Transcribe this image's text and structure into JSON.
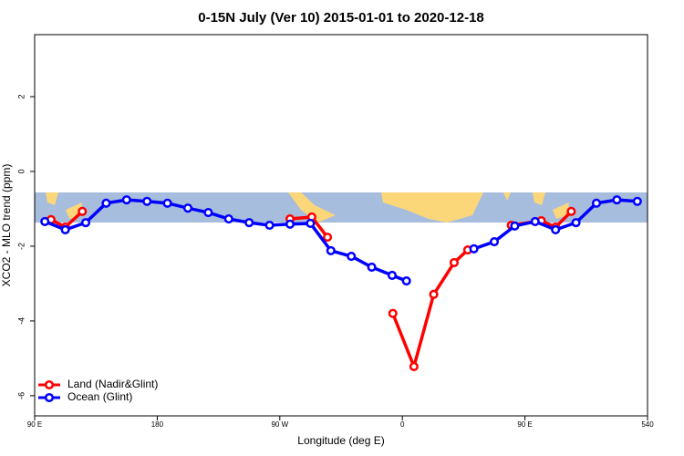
{
  "chart_data": {
    "type": "line",
    "title": "0-15N July (Ver 10)   2015-01-01 to 2020-12-18",
    "xlabel": "Longitude (deg E)",
    "ylabel": "XCO2 - MLO trend (ppm)",
    "xlim": [
      90,
      540
    ],
    "ylim": [
      -6.54,
      3.66
    ],
    "xticks": [
      {
        "value": 90,
        "label": "90 E"
      },
      180,
      {
        "value": 270,
        "label": "90 W"
      },
      {
        "value": 360,
        "label": "0"
      },
      {
        "value": 450,
        "label": "90 E"
      },
      540
    ],
    "yticks": [
      -6,
      -4,
      -2,
      0,
      2
    ],
    "legend": "bottom-left",
    "series": [
      {
        "name": "Land (Nadir&Glint)",
        "color": "#ff0000",
        "x": [
          102,
          112.5,
          125,
          200,
          277.5,
          293.5,
          305,
          330,
          353,
          368.5,
          383,
          398,
          408,
          425,
          440,
          462,
          472.5,
          484
        ],
        "values": [
          -1.29,
          -1.49,
          -1.07,
          null,
          -1.27,
          -1.22,
          -1.76,
          null,
          -3.8,
          -5.22,
          -3.29,
          -2.44,
          -2.1,
          null,
          -1.44,
          -1.32,
          -1.49,
          -1.07
        ]
      },
      {
        "name": "Ocean (Glint)",
        "color": "#0000ff",
        "x": [
          97.5,
          112.5,
          127.5,
          142.5,
          157.5,
          172.5,
          187.5,
          202.5,
          217.5,
          232.5,
          247.5,
          262.5,
          277.5,
          292.5,
          307.5,
          322.5,
          337.5,
          352.5,
          363,
          390,
          412.5,
          427.5,
          442.5,
          457.5,
          472.5,
          487.5,
          502.5,
          517.5,
          532.5
        ],
        "values": [
          -1.34,
          -1.56,
          -1.37,
          -0.85,
          -0.76,
          -0.8,
          -0.85,
          -0.98,
          -1.1,
          -1.27,
          -1.37,
          -1.44,
          -1.41,
          -1.39,
          -2.12,
          -2.27,
          -2.56,
          -2.78,
          -2.93,
          null,
          -2.07,
          -1.88,
          -1.46,
          -1.34,
          -1.56,
          -1.37,
          -0.85,
          -0.76,
          -0.8
        ]
      }
    ]
  }
}
